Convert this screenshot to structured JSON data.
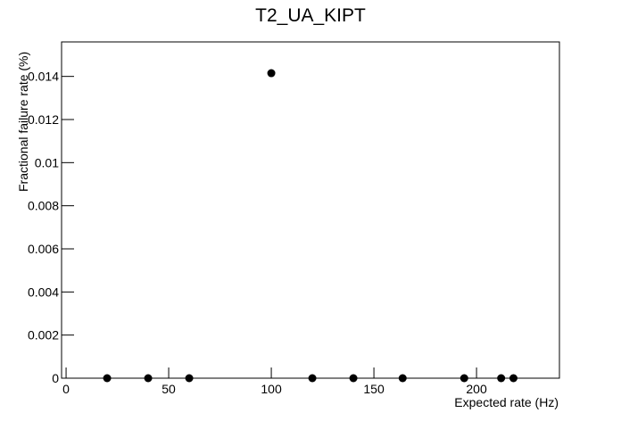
{
  "chart_data": {
    "type": "scatter",
    "title": "T2_UA_KIPT",
    "x_label": "Expected rate (Hz)",
    "y_label": "Fractional failure rate (%)",
    "x": [
      20,
      40,
      60,
      100,
      120,
      140,
      164,
      194,
      212,
      218
    ],
    "values": [
      0,
      0,
      0,
      0.01415,
      0,
      0,
      0,
      0,
      0,
      0
    ],
    "color": "#000000",
    "xlim": [
      -2.2,
      240.4
    ],
    "xticks": [
      0,
      50,
      100,
      150,
      200
    ],
    "ylim": [
      0,
      0.0156
    ],
    "yticks": [
      0,
      0.002,
      0.004,
      0.006,
      0.008,
      0.01,
      0.012,
      0.014
    ],
    "grid": false
  }
}
